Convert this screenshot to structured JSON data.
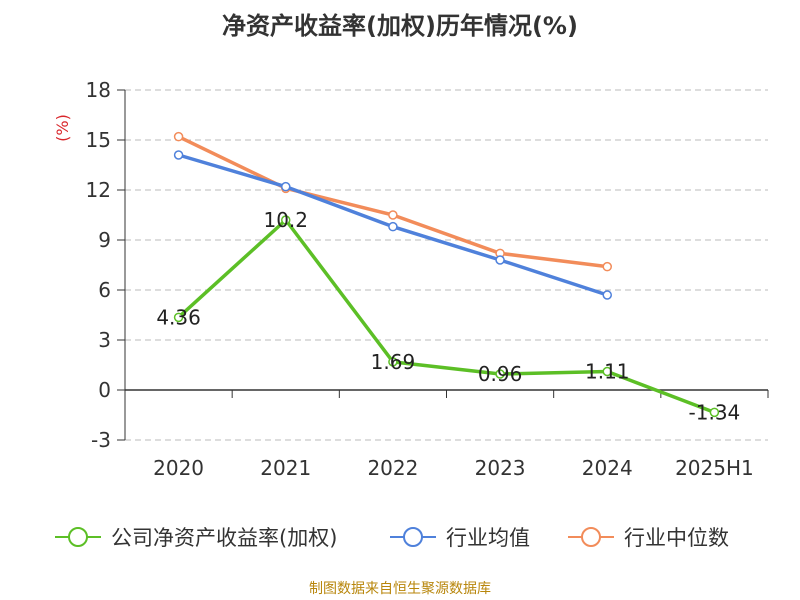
{
  "title": "净资产收益率(加权)历年情况(%)",
  "source": "制图数据来自恒生聚源数据库",
  "colors": {
    "company": "#5cbf26",
    "industry_avg": "#4f81db",
    "industry_median": "#f28c5a",
    "axis": "#333333",
    "grid": "#bbbbbb",
    "ylabel": "#d9262b",
    "title": "#333333",
    "source": "#b8860b"
  },
  "chart_data": {
    "type": "line",
    "title": "净资产收益率(加权)历年情况(%)",
    "xlabel": "",
    "ylabel": "(%)",
    "categories": [
      "2020",
      "2021",
      "2022",
      "2023",
      "2024",
      "2025H1"
    ],
    "ylim": [
      -3,
      18
    ],
    "yticks": [
      -3,
      0,
      3,
      6,
      9,
      12,
      15,
      18
    ],
    "grid": "horizontal dashed",
    "legend_position": "bottom",
    "series": [
      {
        "name": "公司净资产收益率(加权)",
        "color_key": "company",
        "values": [
          4.36,
          10.2,
          1.69,
          0.96,
          1.11,
          -1.34
        ],
        "labels": [
          "4.36",
          "10.2",
          "1.69",
          "0.96",
          "1.11",
          "-1.34"
        ]
      },
      {
        "name": "行业均值",
        "color_key": "industry_avg",
        "values": [
          14.1,
          12.2,
          9.8,
          7.8,
          5.7,
          null
        ]
      },
      {
        "name": "行业中位数",
        "color_key": "industry_median",
        "values": [
          15.2,
          12.1,
          10.5,
          8.2,
          7.4,
          null
        ]
      }
    ]
  }
}
